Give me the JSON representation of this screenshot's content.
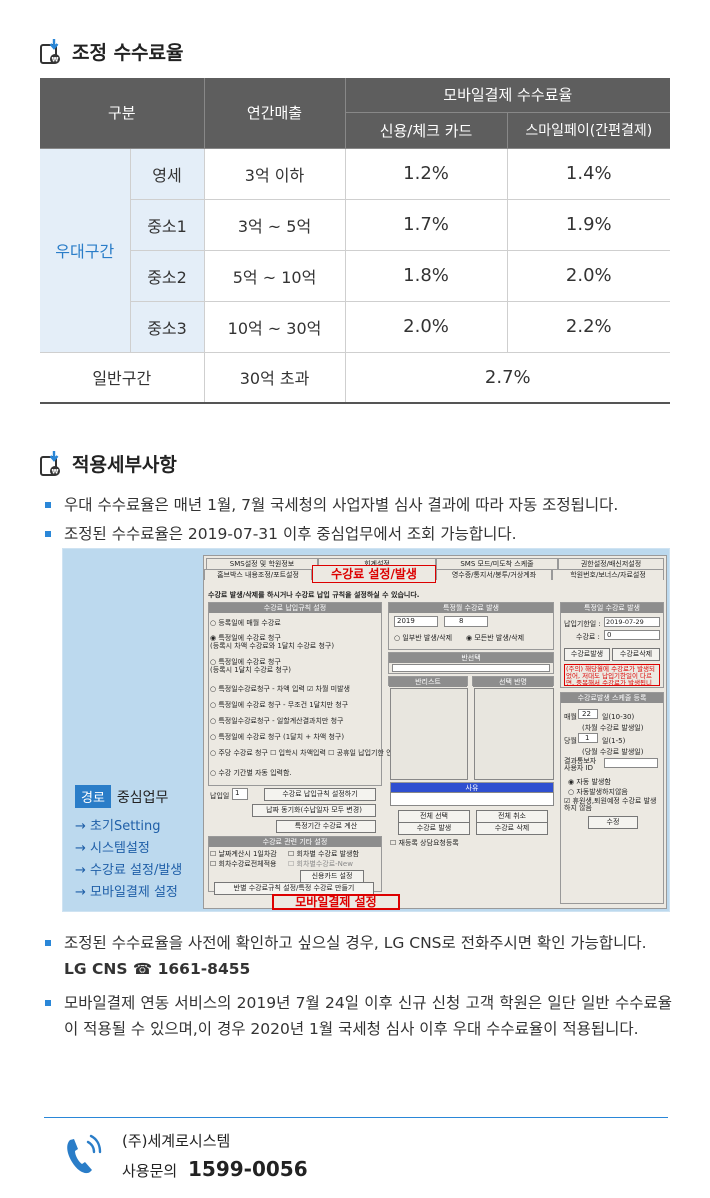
{
  "section1": {
    "title": "조정 수수료율"
  },
  "table": {
    "head": {
      "col_category": "구분",
      "col_sales": "연간매출",
      "col_mobile": "모바일결제 수수료율",
      "col_card": "신용/체크 카드",
      "col_smile": "스마일페이(간편결제)"
    },
    "preferential_label": "우대구간",
    "rows": [
      {
        "tier": "영세",
        "sales": "3억 이하",
        "card": "1.2%",
        "smile": "1.4%"
      },
      {
        "tier": "중소1",
        "sales": "3억 ~ 5억",
        "card": "1.7%",
        "smile": "1.9%"
      },
      {
        "tier": "중소2",
        "sales": "5억 ~ 10억",
        "card": "1.8%",
        "smile": "2.0%"
      },
      {
        "tier": "중소3",
        "sales": "10억 ~ 30억",
        "card": "2.0%",
        "smile": "2.2%"
      }
    ],
    "general": {
      "tier": "일반구간",
      "sales": "30억 초과",
      "rate": "2.7%"
    }
  },
  "section2": {
    "title": "적용세부사항"
  },
  "bullets_top": [
    "우대 수수료율은 매년 1월, 7월 국세청의 사업자별 심사 결과에 따라 자동 조정됩니다.",
    "조정된 수수료율은 2019-07-31 이후 중심업무에서 조회 가능합니다."
  ],
  "screenshot": {
    "route_badge": "경로",
    "route_title": "중심업무",
    "route_items": [
      "→ 초기Setting",
      "→ 시스템설정",
      "→ 수강료 설정/발생",
      "→ 모바일결제 설정"
    ],
    "tabs_row1": [
      "SMS설정 및 학원정보",
      "회계설정",
      "SMS 모드/미도착 스케줄",
      "권한설정/배신저설정"
    ],
    "tabs_row2": [
      "홈브박스 내용조정/포트설정",
      "영수증/통지서/봉투/거상계좌",
      "학원번호/보너스/자료설정"
    ],
    "active_tab": "수강료 설정/발생",
    "notice": "수강료 발생/삭제를 하시거나 수강료 납입 규칙을 설정하실 수 있습니다.",
    "box_rules_title": "수강료 납입규칙 설정",
    "rules": [
      "등록일에 매월 수강료",
      "특정일에 수강료 청구\n(등록시 차액 수강료와 1달치 수강료 청구)",
      "특정일에 수강료 청구\n(등록시 1달치 수강료 청구)",
      "특정일수강료청구 - 차액 입력  ☑ 차월 미발생",
      "특정일에 수강료 청구 - 무조건 1달치만 청구",
      "특정일수강료청구 - 일할계산결과치만 청구",
      "특정일에 수강료 청구 (1달치 + 차액 청구)",
      "주당 수강료 청구  ☐ 입학시 차액입력  ☐ 공휴일 납입기한 연장하기",
      "수강 기간별 자동 입력함."
    ],
    "pay_day_label": "납입일",
    "pay_day_value": "1",
    "btn_rule_save": "수강료 납입규칙 설정하기",
    "btn_pay_sync": "납짜 동기화(수납일자 모두 변경)",
    "btn_period_calc": "특정기간 수강료 계산",
    "box_etc_title": "수강료 관련 기타 설정",
    "etc_opts": [
      "날짜계산시 1일차감",
      "회차별 수강료 발생함",
      "회차수강료전체적용",
      "회차별수강료-New"
    ],
    "btn_card": "신용카드 설정",
    "btn_class": "반별 수강료규칙 설정/특정 수강료 만들기",
    "mobile_btn": "모바일결제 설정",
    "box_issue_title": "특정월 수강료 발생",
    "year": "2019",
    "month": "8",
    "issue_opts": [
      "일부반 발생/삭제",
      "모든반 발생/삭제"
    ],
    "class_sel": "반선택",
    "col_class_list": "반리스트",
    "col_selected": "선택 반명",
    "reason": "사유",
    "btn_sel_all": "전체 선택",
    "btn_cancel_all": "전체 취소",
    "btn_fee_issue": "수강료 발생",
    "btn_fee_delete": "수강료 삭제",
    "reg_consult": "재등록 상담요청등록",
    "box_single_title": "특정일 수강료 발생",
    "due_label": "납입기한일 :",
    "due_value": "2019-07-29",
    "fee_label": "수강료 :",
    "fee_value": "0",
    "btn_issue2": "수강료발생",
    "btn_delete2": "수강료삭제",
    "red_note": "(주의) 해당월에 수강료가 발생되었어, 저대도 납입기한일이 다르면, 중복해서 수강료가 발생됩니다.",
    "box_sched_title": "수강료발생 스케줄 등록",
    "monthly_label": "매월",
    "monthly_value": "22",
    "monthly_unit": "일(10-30)",
    "monthly_note": "(차월 수강료 발생일)",
    "today_label": "당월",
    "today_value": "1",
    "today_unit": "일(1-5)",
    "today_note": "(당월 수강료 발생일)",
    "result_label": "결과통보자\n사용자 ID",
    "auto_opts": [
      "자동 발생함",
      "자동발생하지않음"
    ],
    "retire_opt": "휴원생,퇴원예정 수강료 발생 하지 않음",
    "btn_edit": "수정"
  },
  "bullets_bottom": {
    "b1": "조정된 수수료율을 사전에 확인하고 싶으실 경우, LG CNS로 전화주시면 확인 가능합니다.",
    "b1_contact": "LG CNS ☎ 1661-8455",
    "b2": "모바일결제 연동 서비스의 2019년 7월 24일 이후 신규 신청 고객 학원은 일단 일반 수수료율이 적용될 수 있으며,이 경우 2020년 1월 국세청 심사 이후 우대 수수료율이 적용됩니다."
  },
  "footer": {
    "company": "(주)세계로시스템",
    "inquiry_label": "사용문의",
    "phone": "1599-0056"
  },
  "colors": {
    "accent": "#2a87d8",
    "header_gray": "#5e5e5e",
    "pref_bg": "#e4eef8",
    "pref_text": "#2a7dc8",
    "red": "#dd0000"
  },
  "icons": {
    "section": "card-with-download-icon",
    "phone": "phone-call-icon"
  }
}
